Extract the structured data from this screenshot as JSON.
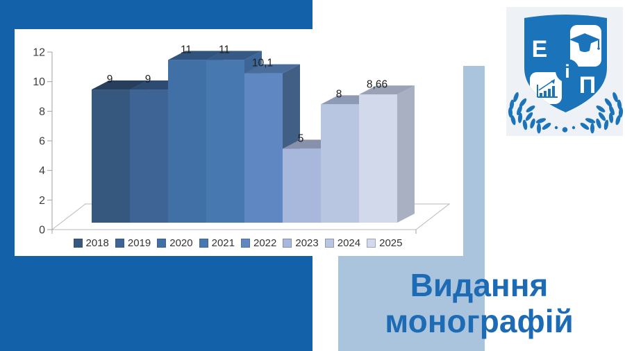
{
  "slide": {
    "title": "Видання монографій",
    "title_color": "#1d6bb4",
    "accent_dark_blue": "#1362a9",
    "accent_light_blue": "#abc4de",
    "card_background": "#ffffff"
  },
  "logo": {
    "letters": {
      "e": "Е",
      "i": "і",
      "p": "П"
    },
    "color": "#1b74ba",
    "panel_background": "#eef1f6",
    "icons": [
      "shield-icon",
      "graduation-cap-icon",
      "growth-chart-icon",
      "laurel-branches-icon"
    ]
  },
  "chart_data": {
    "type": "bar",
    "style": "3d-column",
    "title": "",
    "xlabel": "",
    "ylabel": "",
    "categories": [
      "2018",
      "2019",
      "2020",
      "2021",
      "2022",
      "2023",
      "2024",
      "2025"
    ],
    "values": [
      9,
      9,
      11,
      11,
      10.1,
      5,
      8,
      8.66
    ],
    "labels": [
      "9",
      "9",
      "11",
      "11",
      "10,1",
      "5",
      "8",
      "8,66"
    ],
    "ylim": [
      0,
      12
    ],
    "ytick_step": 2,
    "yticks": [
      "0",
      "2",
      "4",
      "6",
      "8",
      "10",
      "12"
    ],
    "grid": false,
    "legend_position": "bottom",
    "bar_colors": [
      {
        "front": "#36587f",
        "top": "#273f5c",
        "side": "#2d4a6b"
      },
      {
        "front": "#3e6496",
        "top": "#2d4a70",
        "side": "#345680"
      },
      {
        "front": "#4170a7",
        "top": "#30547e",
        "side": "#385f8f"
      },
      {
        "front": "#4878b0",
        "top": "#365a85",
        "side": "#3d6697"
      },
      {
        "front": "#5f88c3",
        "top": "#4a6d9c",
        "side": "#415e84"
      },
      {
        "front": "#a8b7dc",
        "top": "#8791ab",
        "side": "#96a1bd"
      },
      {
        "front": "#b9c6e1",
        "top": "#8e99b3",
        "side": "#a2acc4"
      },
      {
        "front": "#d2d9ea",
        "top": "#9aa3b6",
        "side": "#a8b0c2"
      }
    ],
    "axis_color": "#a0a0a0",
    "floor_stroke": "#b9b9b9"
  }
}
